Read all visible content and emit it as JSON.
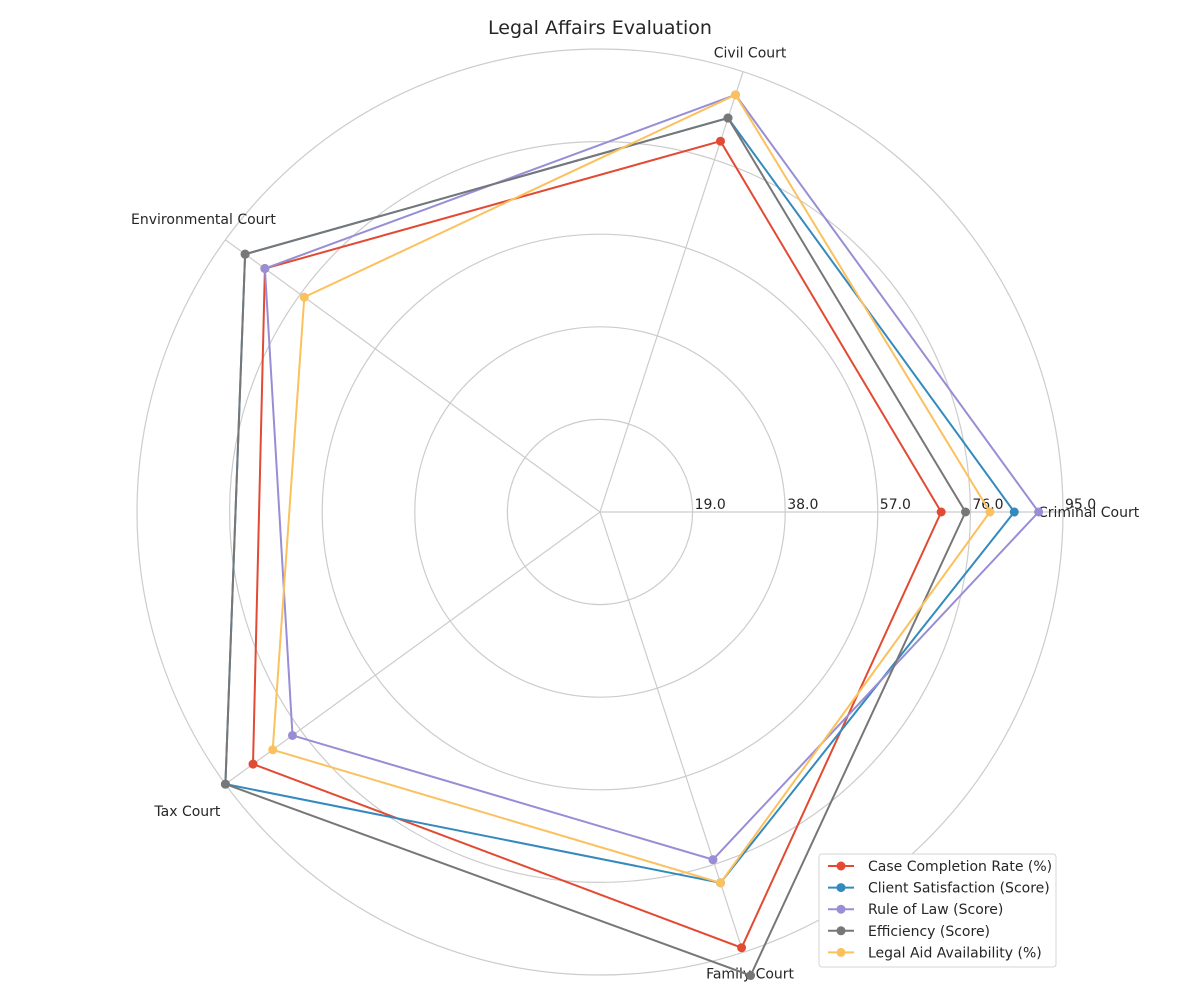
{
  "chart_data": {
    "type": "radar",
    "title": "Legal Affairs Evaluation",
    "categories": [
      "Criminal Court",
      "Civil Court",
      "Environmental Court",
      "Tax Court",
      "Family Court"
    ],
    "rlim": [
      0,
      95
    ],
    "rticks": [
      19,
      38,
      57,
      76,
      95
    ],
    "rtick_labels": [
      "19.0",
      "38.0",
      "57.0",
      "76.0",
      "95.0"
    ],
    "grid": true,
    "legend_position": "lower-right",
    "series": [
      {
        "name": "Case Completion Rate (%)",
        "color": "#E24A33",
        "values": [
          70,
          80,
          85,
          88,
          94
        ]
      },
      {
        "name": "Client Satisfaction (Score)",
        "color": "#348ABD",
        "values": [
          85,
          85,
          90,
          95,
          80
        ]
      },
      {
        "name": "Rule of Law (Score)",
        "color": "#988ED5",
        "values": [
          90,
          90,
          85,
          78,
          75
        ]
      },
      {
        "name": "Efficiency (Score)",
        "color": "#777777",
        "values": [
          75,
          85,
          90,
          95,
          100
        ]
      },
      {
        "name": "Legal Aid Availability (%)",
        "color": "#FBC15E",
        "values": [
          80,
          90,
          75,
          83,
          80
        ]
      }
    ]
  }
}
